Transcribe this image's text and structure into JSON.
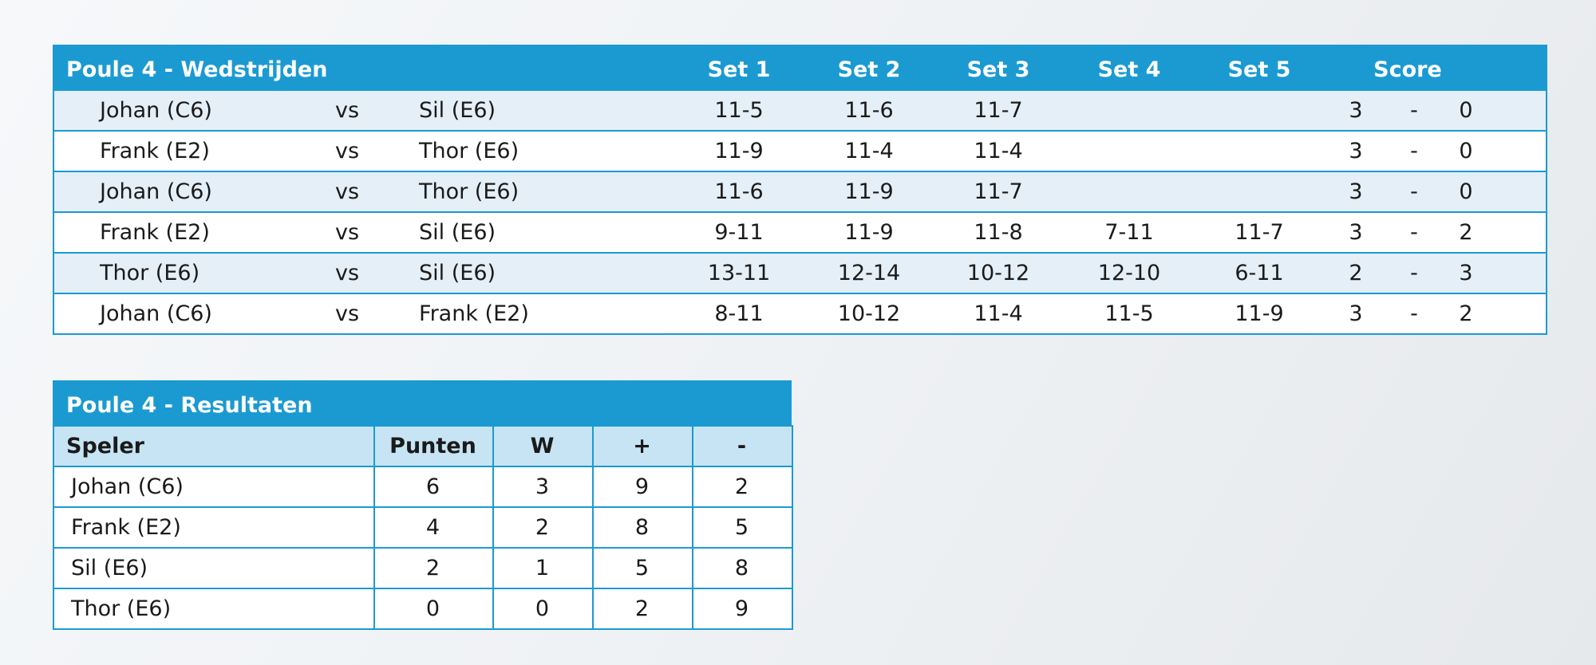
{
  "matches": {
    "title": "Poule 4 - Wedstrijden",
    "set_headers": [
      "Set 1",
      "Set 2",
      "Set 3",
      "Set 4",
      "Set 5"
    ],
    "score_header": "Score",
    "versus": "vs",
    "score_separator": "-",
    "rows": [
      {
        "player1": "Johan (C6)",
        "player2": "Sil (E6)",
        "sets": [
          "11-5",
          "11-6",
          "11-7"
        ],
        "score1": 3,
        "score2": 0
      },
      {
        "player1": "Frank (E2)",
        "player2": "Thor (E6)",
        "sets": [
          "11-9",
          "11-4",
          "11-4"
        ],
        "score1": 3,
        "score2": 0
      },
      {
        "player1": "Johan (C6)",
        "player2": "Thor (E6)",
        "sets": [
          "11-6",
          "11-9",
          "11-7"
        ],
        "score1": 3,
        "score2": 0
      },
      {
        "player1": "Frank (E2)",
        "player2": "Sil (E6)",
        "sets": [
          "9-11",
          "11-9",
          "11-8",
          "7-11",
          "11-7"
        ],
        "score1": 3,
        "score2": 2
      },
      {
        "player1": "Thor (E6)",
        "player2": "Sil (E6)",
        "sets": [
          "13-11",
          "12-14",
          "10-12",
          "12-10",
          "6-11"
        ],
        "score1": 2,
        "score2": 3
      },
      {
        "player1": "Johan (C6)",
        "player2": "Frank (E2)",
        "sets": [
          "8-11",
          "10-12",
          "11-4",
          "11-5",
          "11-9"
        ],
        "score1": 3,
        "score2": 2
      }
    ]
  },
  "results": {
    "title": "Poule 4 - Resultaten",
    "headers": [
      "Speler",
      "Punten",
      "W",
      "+",
      "-"
    ],
    "rows": [
      [
        "Johan (C6)",
        6,
        3,
        9,
        2
      ],
      [
        "Frank (E2)",
        4,
        2,
        8,
        5
      ],
      [
        "Sil (E6)",
        2,
        1,
        5,
        8
      ],
      [
        "Thor (E6)",
        0,
        0,
        2,
        9
      ]
    ]
  }
}
